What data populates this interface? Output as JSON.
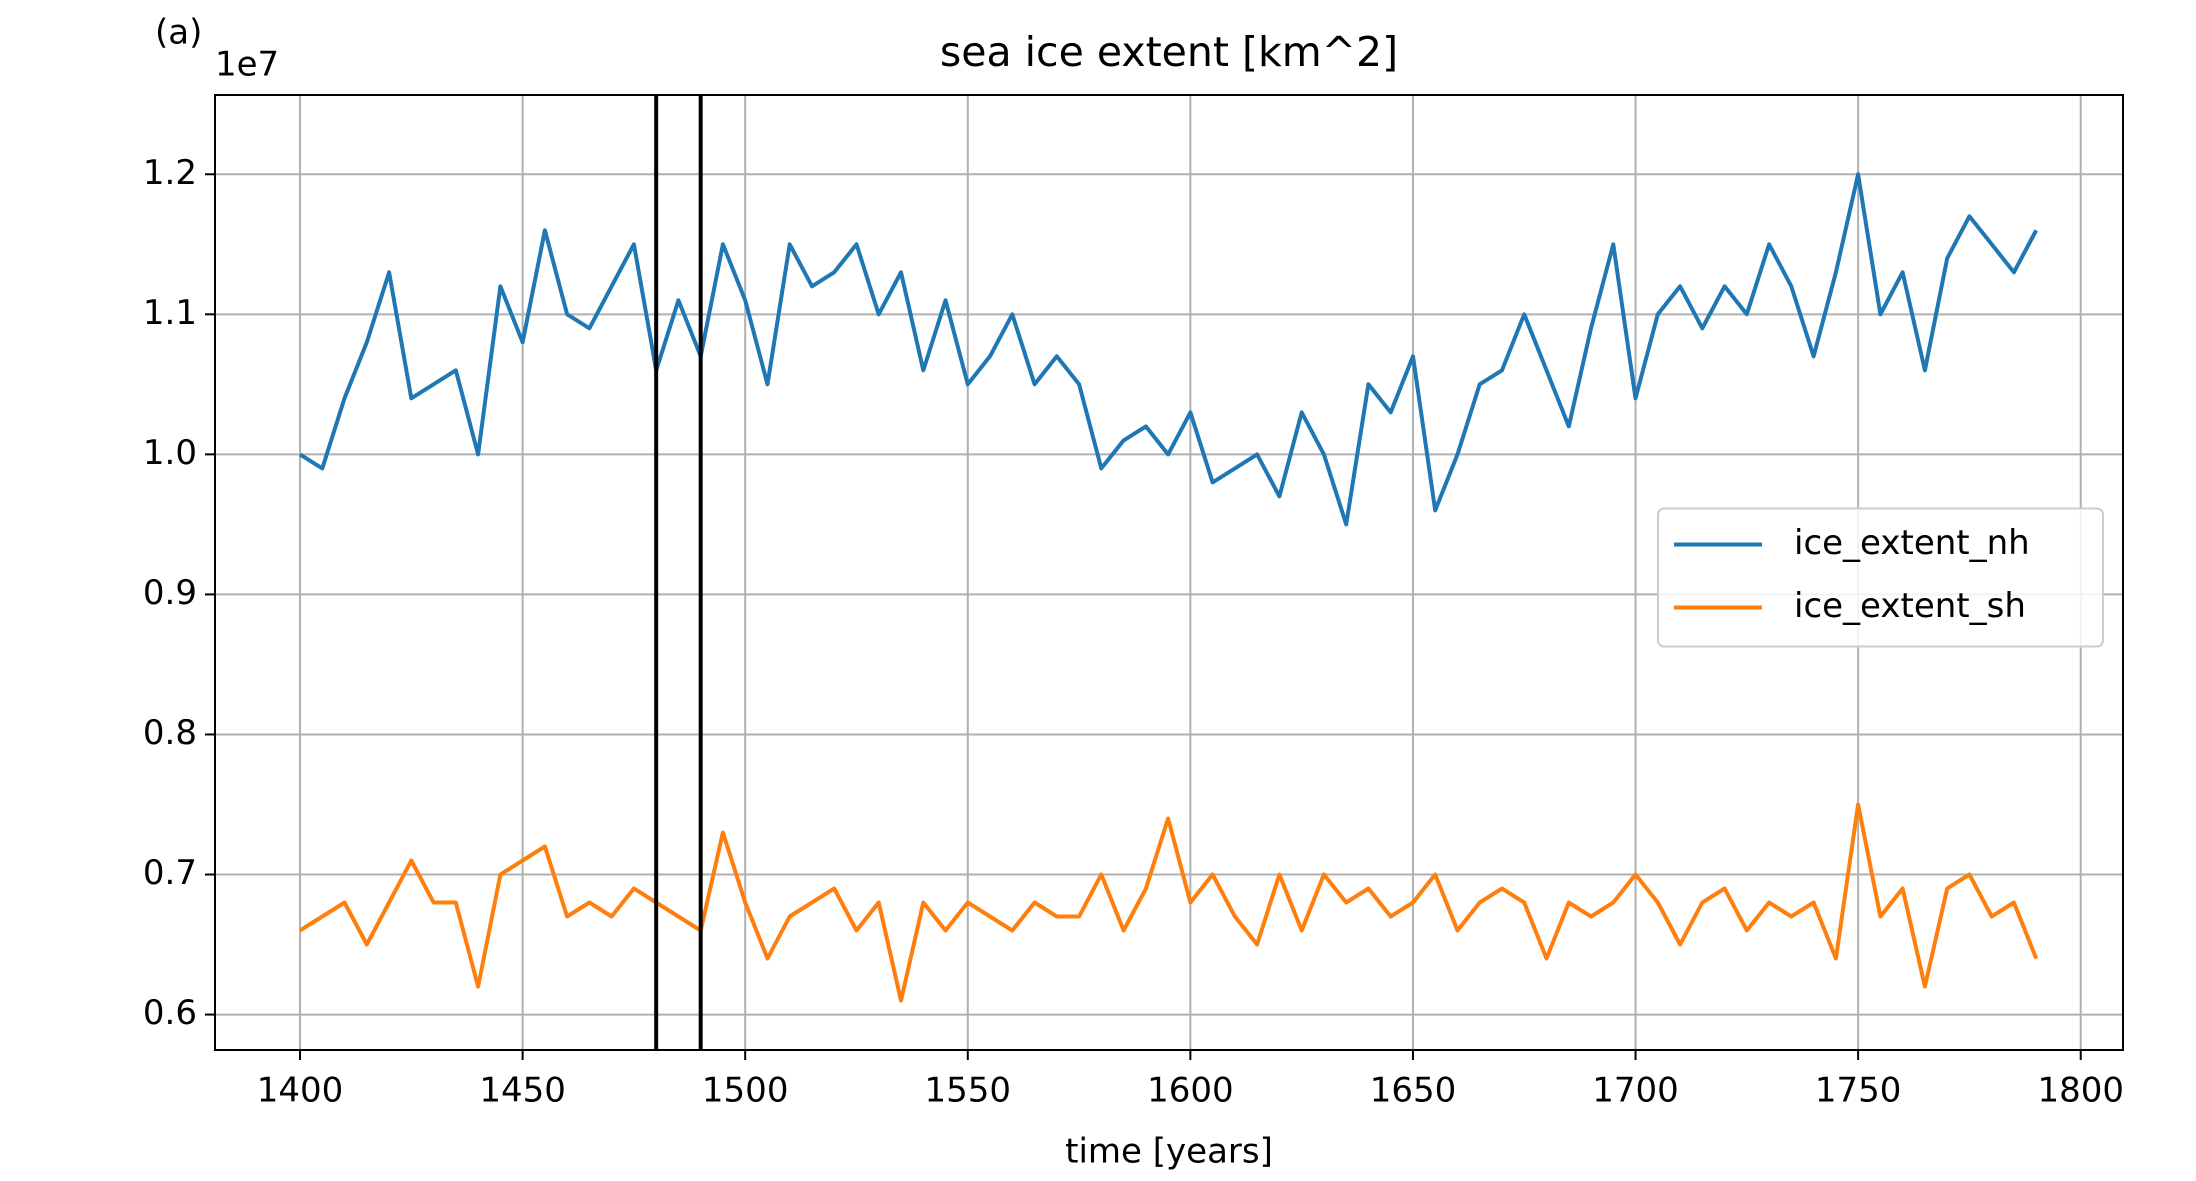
{
  "chart_data": {
    "type": "line",
    "panel_label": "(a)",
    "title": "sea ice extent [km^2]",
    "xlabel": "time [years]",
    "y_offset_label": "1e7",
    "x": [
      1400,
      1405,
      1410,
      1415,
      1420,
      1425,
      1430,
      1435,
      1440,
      1445,
      1450,
      1455,
      1460,
      1465,
      1470,
      1475,
      1480,
      1485,
      1490,
      1495,
      1500,
      1505,
      1510,
      1515,
      1520,
      1525,
      1530,
      1535,
      1540,
      1545,
      1550,
      1555,
      1560,
      1565,
      1570,
      1575,
      1580,
      1585,
      1590,
      1595,
      1600,
      1605,
      1610,
      1615,
      1620,
      1625,
      1630,
      1635,
      1640,
      1645,
      1650,
      1655,
      1660,
      1665,
      1670,
      1675,
      1680,
      1685,
      1690,
      1695,
      1700,
      1705,
      1710,
      1715,
      1720,
      1725,
      1730,
      1735,
      1740,
      1745,
      1750,
      1755,
      1760,
      1765,
      1770,
      1775,
      1780,
      1785,
      1790
    ],
    "series": [
      {
        "name": "ice_extent_nh",
        "color": "#1f77b4",
        "values": [
          1.0,
          0.99,
          1.04,
          1.08,
          1.13,
          1.04,
          1.05,
          1.06,
          1.0,
          1.12,
          1.08,
          1.16,
          1.1,
          1.09,
          1.12,
          1.15,
          1.06,
          1.11,
          1.07,
          1.15,
          1.11,
          1.05,
          1.15,
          1.12,
          1.13,
          1.15,
          1.1,
          1.13,
          1.06,
          1.11,
          1.05,
          1.07,
          1.1,
          1.05,
          1.07,
          1.05,
          0.99,
          1.01,
          1.02,
          1.0,
          1.03,
          0.98,
          0.99,
          1.0,
          0.97,
          1.03,
          1.0,
          0.95,
          1.05,
          1.03,
          1.07,
          0.96,
          1.0,
          1.05,
          1.06,
          1.1,
          1.06,
          1.02,
          1.09,
          1.15,
          1.04,
          1.1,
          1.12,
          1.09,
          1.12,
          1.1,
          1.15,
          1.12,
          1.07,
          1.13,
          1.2,
          1.1,
          1.13,
          1.06,
          1.14,
          1.17,
          1.15,
          1.13,
          1.16
        ]
      },
      {
        "name": "ice_extent_sh",
        "color": "#ff7f0e",
        "values": [
          0.66,
          0.67,
          0.68,
          0.65,
          0.68,
          0.71,
          0.68,
          0.68,
          0.62,
          0.7,
          0.71,
          0.72,
          0.67,
          0.68,
          0.67,
          0.69,
          0.68,
          0.67,
          0.66,
          0.73,
          0.68,
          0.64,
          0.67,
          0.68,
          0.69,
          0.66,
          0.68,
          0.61,
          0.68,
          0.66,
          0.68,
          0.67,
          0.66,
          0.68,
          0.67,
          0.67,
          0.7,
          0.66,
          0.69,
          0.74,
          0.68,
          0.7,
          0.67,
          0.65,
          0.7,
          0.66,
          0.7,
          0.68,
          0.69,
          0.67,
          0.68,
          0.7,
          0.66,
          0.68,
          0.69,
          0.68,
          0.64,
          0.68,
          0.67,
          0.68,
          0.7,
          0.68,
          0.65,
          0.68,
          0.69,
          0.66,
          0.68,
          0.67,
          0.68,
          0.64,
          0.75,
          0.67,
          0.69,
          0.62,
          0.69,
          0.7,
          0.67,
          0.68,
          0.64
        ]
      }
    ],
    "vlines": [
      1480,
      1490
    ],
    "vline_color": "#000000",
    "xlim": [
      1380.9,
      1809.5
    ],
    "ylim": [
      0.5747,
      1.2566
    ],
    "xticks": [
      1400,
      1450,
      1500,
      1550,
      1600,
      1650,
      1700,
      1750,
      1800
    ],
    "yticks": [
      {
        "value": 0.6,
        "label": "0.6"
      },
      {
        "value": 0.7,
        "label": "0.7"
      },
      {
        "value": 0.8,
        "label": "0.8"
      },
      {
        "value": 0.9,
        "label": "0.9"
      },
      {
        "value": 1.0,
        "label": "1.0"
      },
      {
        "value": 1.1,
        "label": "1.1"
      },
      {
        "value": 1.2,
        "label": "1.2"
      }
    ],
    "grid": true,
    "legend": "center right"
  }
}
